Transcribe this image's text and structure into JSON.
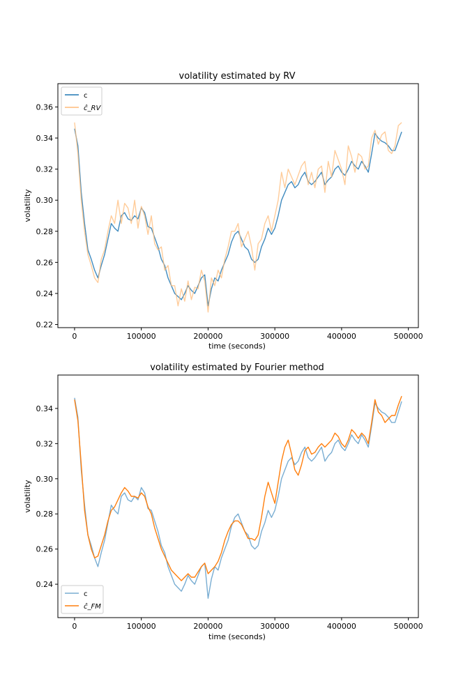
{
  "chart_data": [
    {
      "type": "line",
      "title": "volatility estimated by RV",
      "xlabel": "time (seconds)",
      "ylabel": "volatility",
      "xlim": [
        -25000,
        515000
      ],
      "ylim": [
        0.218,
        0.375
      ],
      "xticks": [
        0,
        100000,
        200000,
        300000,
        400000,
        500000
      ],
      "xtick_labels": [
        "0",
        "100000",
        "200000",
        "300000",
        "400000",
        "500000"
      ],
      "yticks": [
        0.22,
        0.24,
        0.26,
        0.28,
        0.3,
        0.32,
        0.34,
        0.36
      ],
      "ytick_labels": [
        "0.22",
        "0.24",
        "0.26",
        "0.28",
        "0.30",
        "0.32",
        "0.34",
        "0.36"
      ],
      "legend_position": "top-left",
      "series": [
        {
          "name": "c",
          "color": "#1f77b4",
          "opacity": 0.85,
          "x": [
            0,
            5000,
            10000,
            15000,
            20000,
            25000,
            30000,
            35000,
            40000,
            45000,
            50000,
            55000,
            60000,
            65000,
            70000,
            75000,
            80000,
            85000,
            90000,
            95000,
            100000,
            105000,
            110000,
            115000,
            120000,
            125000,
            130000,
            135000,
            140000,
            145000,
            150000,
            155000,
            160000,
            165000,
            170000,
            175000,
            180000,
            185000,
            190000,
            195000,
            200000,
            205000,
            210000,
            215000,
            220000,
            225000,
            230000,
            235000,
            240000,
            245000,
            250000,
            255000,
            260000,
            265000,
            270000,
            275000,
            280000,
            285000,
            290000,
            295000,
            300000,
            305000,
            310000,
            315000,
            320000,
            325000,
            330000,
            335000,
            340000,
            345000,
            350000,
            355000,
            360000,
            365000,
            370000,
            375000,
            380000,
            385000,
            390000,
            395000,
            400000,
            405000,
            410000,
            415000,
            420000,
            425000,
            430000,
            435000,
            440000,
            445000,
            450000,
            455000,
            460000,
            465000,
            470000,
            475000,
            480000,
            485000,
            490000
          ],
          "values": [
            0.346,
            0.335,
            0.305,
            0.285,
            0.268,
            0.262,
            0.255,
            0.25,
            0.258,
            0.265,
            0.275,
            0.285,
            0.282,
            0.28,
            0.29,
            0.292,
            0.288,
            0.287,
            0.29,
            0.288,
            0.295,
            0.292,
            0.283,
            0.282,
            0.276,
            0.27,
            0.262,
            0.258,
            0.25,
            0.245,
            0.24,
            0.238,
            0.236,
            0.24,
            0.245,
            0.242,
            0.24,
            0.245,
            0.25,
            0.252,
            0.232,
            0.243,
            0.25,
            0.248,
            0.255,
            0.26,
            0.265,
            0.273,
            0.278,
            0.28,
            0.275,
            0.27,
            0.268,
            0.262,
            0.26,
            0.262,
            0.27,
            0.275,
            0.282,
            0.278,
            0.282,
            0.29,
            0.3,
            0.305,
            0.31,
            0.312,
            0.308,
            0.31,
            0.315,
            0.318,
            0.312,
            0.31,
            0.312,
            0.315,
            0.318,
            0.31,
            0.313,
            0.315,
            0.32,
            0.322,
            0.318,
            0.316,
            0.32,
            0.325,
            0.322,
            0.32,
            0.325,
            0.322,
            0.318,
            0.33,
            0.343,
            0.34,
            0.338,
            0.337,
            0.335,
            0.332,
            0.332,
            0.338,
            0.344
          ]
        },
        {
          "name": "ĉ_RV",
          "color": "#ffbb78",
          "opacity": 0.75,
          "x": [
            0,
            5000,
            10000,
            15000,
            20000,
            25000,
            30000,
            35000,
            40000,
            45000,
            50000,
            55000,
            60000,
            65000,
            70000,
            75000,
            80000,
            85000,
            90000,
            95000,
            100000,
            105000,
            110000,
            115000,
            120000,
            125000,
            130000,
            135000,
            140000,
            145000,
            150000,
            155000,
            160000,
            165000,
            170000,
            175000,
            180000,
            185000,
            190000,
            195000,
            200000,
            205000,
            210000,
            215000,
            220000,
            225000,
            230000,
            235000,
            240000,
            245000,
            250000,
            255000,
            260000,
            265000,
            270000,
            275000,
            280000,
            285000,
            290000,
            295000,
            300000,
            305000,
            310000,
            315000,
            320000,
            325000,
            330000,
            335000,
            340000,
            345000,
            350000,
            355000,
            360000,
            365000,
            370000,
            375000,
            380000,
            385000,
            390000,
            395000,
            400000,
            405000,
            410000,
            415000,
            420000,
            425000,
            430000,
            435000,
            440000,
            445000,
            450000,
            455000,
            460000,
            465000,
            470000,
            475000,
            480000,
            485000,
            490000
          ],
          "values": [
            0.35,
            0.33,
            0.3,
            0.28,
            0.265,
            0.258,
            0.25,
            0.247,
            0.262,
            0.268,
            0.28,
            0.29,
            0.285,
            0.3,
            0.285,
            0.298,
            0.295,
            0.285,
            0.3,
            0.282,
            0.296,
            0.29,
            0.278,
            0.29,
            0.272,
            0.268,
            0.27,
            0.255,
            0.258,
            0.245,
            0.245,
            0.232,
            0.243,
            0.235,
            0.248,
            0.236,
            0.244,
            0.243,
            0.255,
            0.248,
            0.228,
            0.25,
            0.245,
            0.255,
            0.25,
            0.262,
            0.27,
            0.28,
            0.28,
            0.285,
            0.27,
            0.275,
            0.28,
            0.27,
            0.255,
            0.272,
            0.275,
            0.285,
            0.29,
            0.28,
            0.29,
            0.3,
            0.318,
            0.308,
            0.32,
            0.315,
            0.31,
            0.316,
            0.322,
            0.325,
            0.31,
            0.318,
            0.308,
            0.32,
            0.322,
            0.305,
            0.325,
            0.315,
            0.332,
            0.326,
            0.32,
            0.31,
            0.335,
            0.328,
            0.318,
            0.33,
            0.328,
            0.32,
            0.322,
            0.34,
            0.345,
            0.336,
            0.342,
            0.344,
            0.332,
            0.33,
            0.335,
            0.348,
            0.35
          ]
        }
      ]
    },
    {
      "type": "line",
      "title": "volatility estimated by Fourier method",
      "xlabel": "time (seconds)",
      "ylabel": "volatility",
      "xlim": [
        -25000,
        515000
      ],
      "ylim": [
        0.221,
        0.359
      ],
      "xticks": [
        0,
        100000,
        200000,
        300000,
        400000,
        500000
      ],
      "xtick_labels": [
        "0",
        "100000",
        "200000",
        "300000",
        "400000",
        "500000"
      ],
      "yticks": [
        0.24,
        0.26,
        0.28,
        0.3,
        0.32,
        0.34
      ],
      "ytick_labels": [
        "0.24",
        "0.26",
        "0.28",
        "0.30",
        "0.32",
        "0.34"
      ],
      "legend_position": "bottom-left",
      "series": [
        {
          "name": "c",
          "color": "#1f77b4",
          "opacity": 0.6,
          "x": [
            0,
            5000,
            10000,
            15000,
            20000,
            25000,
            30000,
            35000,
            40000,
            45000,
            50000,
            55000,
            60000,
            65000,
            70000,
            75000,
            80000,
            85000,
            90000,
            95000,
            100000,
            105000,
            110000,
            115000,
            120000,
            125000,
            130000,
            135000,
            140000,
            145000,
            150000,
            155000,
            160000,
            165000,
            170000,
            175000,
            180000,
            185000,
            190000,
            195000,
            200000,
            205000,
            210000,
            215000,
            220000,
            225000,
            230000,
            235000,
            240000,
            245000,
            250000,
            255000,
            260000,
            265000,
            270000,
            275000,
            280000,
            285000,
            290000,
            295000,
            300000,
            305000,
            310000,
            315000,
            320000,
            325000,
            330000,
            335000,
            340000,
            345000,
            350000,
            355000,
            360000,
            365000,
            370000,
            375000,
            380000,
            385000,
            390000,
            395000,
            400000,
            405000,
            410000,
            415000,
            420000,
            425000,
            430000,
            435000,
            440000,
            445000,
            450000,
            455000,
            460000,
            465000,
            470000,
            475000,
            480000,
            485000,
            490000
          ],
          "values": [
            0.346,
            0.335,
            0.305,
            0.285,
            0.268,
            0.262,
            0.255,
            0.25,
            0.258,
            0.265,
            0.275,
            0.285,
            0.282,
            0.28,
            0.29,
            0.292,
            0.288,
            0.287,
            0.29,
            0.288,
            0.295,
            0.292,
            0.283,
            0.282,
            0.276,
            0.27,
            0.262,
            0.258,
            0.25,
            0.245,
            0.24,
            0.238,
            0.236,
            0.24,
            0.245,
            0.242,
            0.24,
            0.245,
            0.25,
            0.252,
            0.232,
            0.243,
            0.25,
            0.248,
            0.255,
            0.26,
            0.265,
            0.273,
            0.278,
            0.28,
            0.275,
            0.27,
            0.268,
            0.262,
            0.26,
            0.262,
            0.27,
            0.275,
            0.282,
            0.278,
            0.282,
            0.29,
            0.3,
            0.305,
            0.31,
            0.312,
            0.308,
            0.31,
            0.315,
            0.318,
            0.312,
            0.31,
            0.312,
            0.315,
            0.318,
            0.31,
            0.313,
            0.315,
            0.32,
            0.322,
            0.318,
            0.316,
            0.32,
            0.325,
            0.322,
            0.32,
            0.325,
            0.322,
            0.318,
            0.33,
            0.343,
            0.34,
            0.338,
            0.337,
            0.335,
            0.332,
            0.332,
            0.338,
            0.344
          ]
        },
        {
          "name": "ĉ_FM",
          "color": "#ff7f0e",
          "opacity": 1.0,
          "x": [
            0,
            5000,
            10000,
            15000,
            20000,
            25000,
            30000,
            35000,
            40000,
            45000,
            50000,
            55000,
            60000,
            65000,
            70000,
            75000,
            80000,
            85000,
            90000,
            95000,
            100000,
            105000,
            110000,
            115000,
            120000,
            125000,
            130000,
            135000,
            140000,
            145000,
            150000,
            155000,
            160000,
            165000,
            170000,
            175000,
            180000,
            185000,
            190000,
            195000,
            200000,
            205000,
            210000,
            215000,
            220000,
            225000,
            230000,
            235000,
            240000,
            245000,
            250000,
            255000,
            260000,
            265000,
            270000,
            275000,
            280000,
            285000,
            290000,
            295000,
            300000,
            305000,
            310000,
            315000,
            320000,
            325000,
            330000,
            335000,
            340000,
            345000,
            350000,
            355000,
            360000,
            365000,
            370000,
            375000,
            380000,
            385000,
            390000,
            395000,
            400000,
            405000,
            410000,
            415000,
            420000,
            425000,
            430000,
            435000,
            440000,
            445000,
            450000,
            455000,
            460000,
            465000,
            470000,
            475000,
            480000,
            485000,
            490000
          ],
          "values": [
            0.345,
            0.333,
            0.308,
            0.282,
            0.268,
            0.26,
            0.255,
            0.256,
            0.262,
            0.268,
            0.276,
            0.282,
            0.284,
            0.288,
            0.292,
            0.295,
            0.293,
            0.29,
            0.29,
            0.289,
            0.292,
            0.29,
            0.284,
            0.28,
            0.272,
            0.266,
            0.26,
            0.256,
            0.252,
            0.248,
            0.246,
            0.244,
            0.242,
            0.244,
            0.246,
            0.244,
            0.244,
            0.247,
            0.25,
            0.252,
            0.246,
            0.248,
            0.25,
            0.253,
            0.258,
            0.265,
            0.27,
            0.274,
            0.276,
            0.276,
            0.274,
            0.27,
            0.266,
            0.266,
            0.265,
            0.268,
            0.278,
            0.29,
            0.298,
            0.292,
            0.286,
            0.298,
            0.31,
            0.318,
            0.322,
            0.314,
            0.305,
            0.302,
            0.308,
            0.316,
            0.318,
            0.314,
            0.315,
            0.318,
            0.32,
            0.318,
            0.32,
            0.322,
            0.326,
            0.324,
            0.32,
            0.318,
            0.322,
            0.328,
            0.326,
            0.323,
            0.326,
            0.324,
            0.32,
            0.332,
            0.345,
            0.338,
            0.336,
            0.332,
            0.334,
            0.336,
            0.336,
            0.342,
            0.347
          ]
        }
      ]
    }
  ]
}
